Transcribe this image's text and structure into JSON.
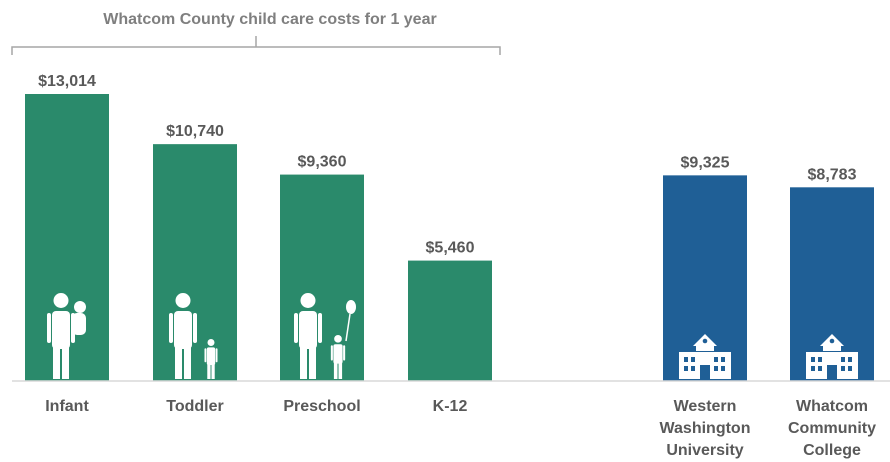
{
  "chart_data": {
    "type": "bar",
    "title": "",
    "xlabel": "",
    "ylabel": "",
    "ylim": [
      0,
      13014
    ],
    "grid": false,
    "bracket_label": "Whatcom County child care costs for 1 year",
    "categories": [
      {
        "lines": [
          "Infant"
        ],
        "value": 13014,
        "label": "$13,014",
        "color": "#2a8a6b",
        "icon": "adult-carrying-baby-icon"
      },
      {
        "lines": [
          "Toddler"
        ],
        "value": 10740,
        "label": "$10,740",
        "color": "#2a8a6b",
        "icon": "adult-with-toddler-icon"
      },
      {
        "lines": [
          "Preschool"
        ],
        "value": 9360,
        "label": "$9,360",
        "color": "#2a8a6b",
        "icon": "adult-with-child-balloon-icon"
      },
      {
        "lines": [
          "K-12"
        ],
        "value": 5460,
        "label": "$5,460",
        "color": "#2a8a6b",
        "icon": ""
      },
      {
        "lines": [
          "Western",
          "Washington",
          "University"
        ],
        "value": 9325,
        "label": "$9,325",
        "color": "#1f5f96",
        "icon": "school-building-icon"
      },
      {
        "lines": [
          "Whatcom",
          "Community",
          "College"
        ],
        "value": 8783,
        "label": "$8,783",
        "color": "#1f5f96",
        "icon": "school-building-icon"
      }
    ]
  }
}
